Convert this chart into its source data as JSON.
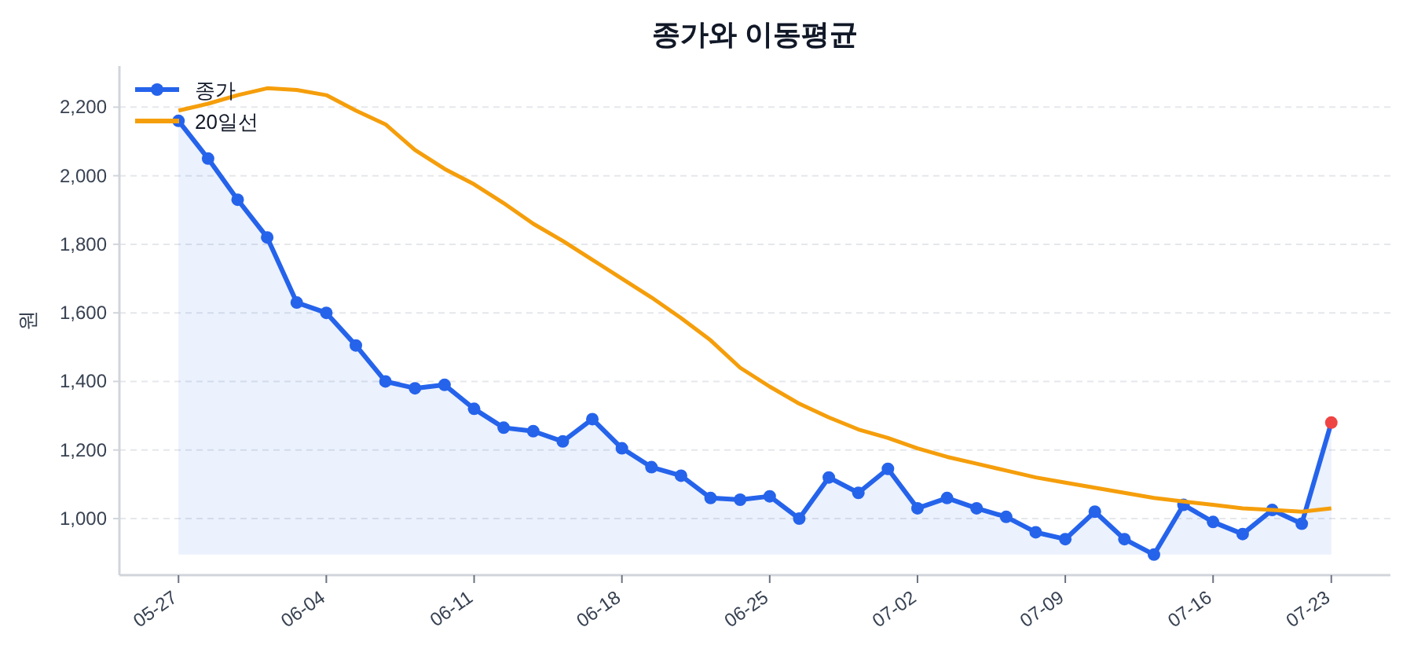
{
  "chart_data": {
    "type": "line",
    "title": "종가와 이동평균",
    "ylabel": "원",
    "categories": [
      "05-27",
      null,
      null,
      null,
      null,
      "06-04",
      null,
      null,
      null,
      null,
      "06-11",
      null,
      null,
      null,
      null,
      "06-18",
      null,
      null,
      null,
      null,
      "06-25",
      null,
      null,
      null,
      null,
      "07-02",
      null,
      null,
      null,
      null,
      "07-09",
      null,
      null,
      null,
      null,
      "07-16",
      null,
      null,
      null,
      "07-23"
    ],
    "series": [
      {
        "name": "종가",
        "type": "area",
        "color": "#2563eb",
        "values": [
          2160,
          2050,
          1930,
          1820,
          1630,
          1600,
          1505,
          1400,
          1380,
          1390,
          1320,
          1265,
          1255,
          1225,
          1290,
          1205,
          1150,
          1125,
          1060,
          1055,
          1065,
          1000,
          1120,
          1075,
          1145,
          1030,
          1060,
          1030,
          1005,
          960,
          940,
          1020,
          940,
          895,
          1040,
          990,
          955,
          1025,
          985,
          1280
        ],
        "colors": [
          "#2563eb",
          "#2563eb",
          "#2563eb",
          "#2563eb",
          "#2563eb",
          "#2563eb",
          "#2563eb",
          "#2563eb",
          "#2563eb",
          "#2563eb",
          "#2563eb",
          "#2563eb",
          "#2563eb",
          "#2563eb",
          "#2563eb",
          "#2563eb",
          "#2563eb",
          "#2563eb",
          "#2563eb",
          "#2563eb",
          "#2563eb",
          "#2563eb",
          "#2563eb",
          "#2563eb",
          "#2563eb",
          "#2563eb",
          "#2563eb",
          "#2563eb",
          "#2563eb",
          "#2563eb",
          "#2563eb",
          "#2563eb",
          "#2563eb",
          "#2563eb",
          "#2563eb",
          "#2563eb",
          "#2563eb",
          "#2563eb",
          "#2563eb",
          "#ef4444"
        ]
      },
      {
        "name": "20일선",
        "color": "#f59e0b",
        "marker": "none",
        "values": [
          2190,
          2210,
          2235,
          2255,
          2250,
          2235,
          2190,
          2150,
          2075,
          2020,
          1975,
          1920,
          1860,
          1810,
          1755,
          1700,
          1645,
          1585,
          1520,
          1440,
          1385,
          1335,
          1295,
          1260,
          1235,
          1205,
          1180,
          1160,
          1140,
          1120,
          1105,
          1090,
          1075,
          1060,
          1050,
          1040,
          1030,
          1025,
          1020,
          1030
        ]
      }
    ],
    "ylim": [
      835,
      2320
    ],
    "yticks": [
      {
        "value": 1000,
        "label": "1,000"
      },
      {
        "value": 1200,
        "label": "1,200"
      },
      {
        "value": 1400,
        "label": "1,400"
      },
      {
        "value": 1600,
        "label": "1,600"
      },
      {
        "value": 1800,
        "label": "1,800"
      },
      {
        "value": 2000,
        "label": "2,000"
      },
      {
        "value": 2200,
        "label": "2,200"
      }
    ],
    "grid": "y",
    "legend": "top left",
    "marker": "circle",
    "line_style": "solid"
  }
}
